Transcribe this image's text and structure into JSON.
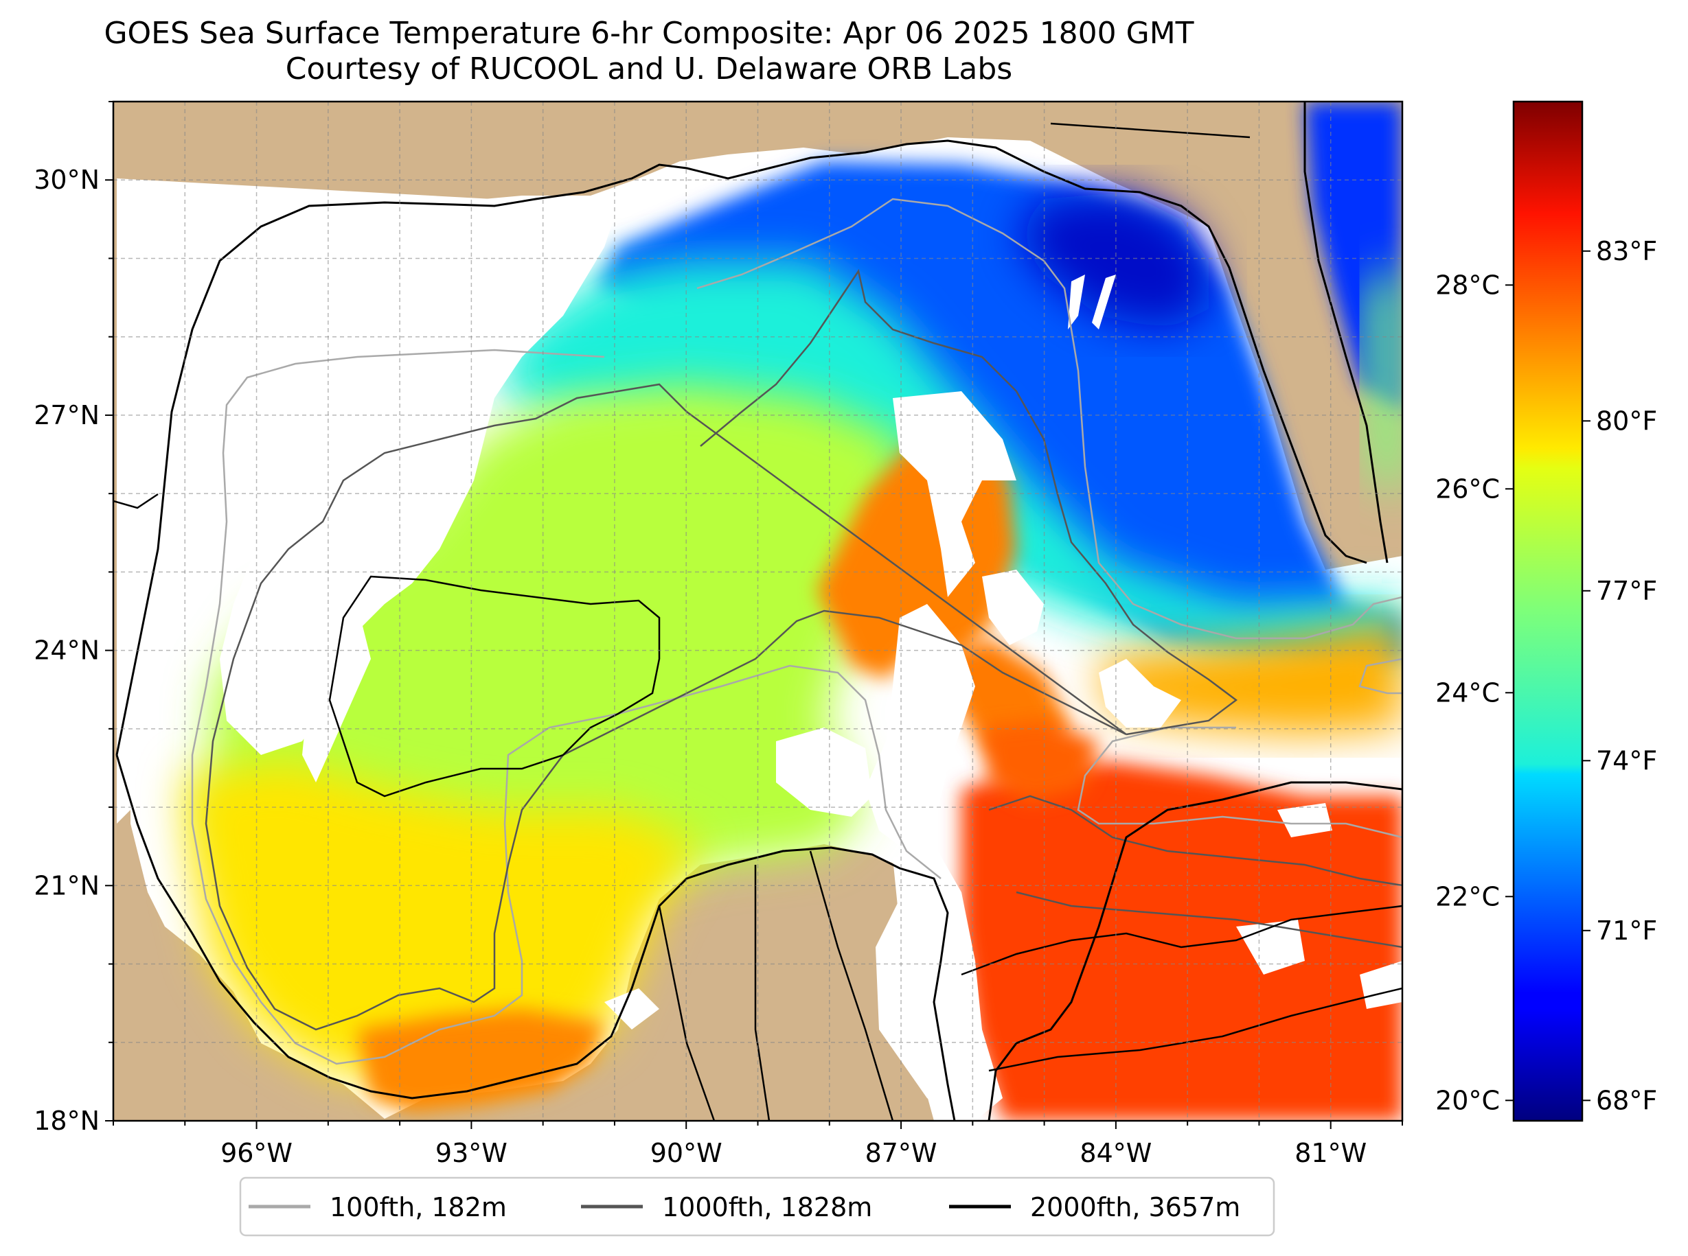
{
  "title": {
    "line1": "GOES Sea Surface Temperature 6-hr Composite: Apr 06 2025 1800 GMT",
    "line2": "Courtesy of RUCOOL and U. Delaware ORB Labs"
  },
  "map": {
    "lon_range": [
      -98,
      -80
    ],
    "lat_range": [
      18,
      31
    ],
    "lon_ticks": [
      {
        "value": -96,
        "label": "96°W"
      },
      {
        "value": -93,
        "label": "93°W"
      },
      {
        "value": -90,
        "label": "90°W"
      },
      {
        "value": -87,
        "label": "87°W"
      },
      {
        "value": -84,
        "label": "84°W"
      },
      {
        "value": -81,
        "label": "81°W"
      }
    ],
    "lat_ticks": [
      {
        "value": 18,
        "label": "18°N"
      },
      {
        "value": 21,
        "label": "21°N"
      },
      {
        "value": 24,
        "label": "24°N"
      },
      {
        "value": 27,
        "label": "27°N"
      },
      {
        "value": 30,
        "label": "30°N"
      }
    ],
    "gridlines": true,
    "land_color": "#d2b48c",
    "no_data_color": "#ffffff",
    "water_body_color": "#99b3e6"
  },
  "colorbar": {
    "colormap": "jet",
    "range_c": [
      19.8,
      29.8
    ],
    "celsius_ticks": [
      {
        "value": 20,
        "label": "20°C"
      },
      {
        "value": 22,
        "label": "22°C"
      },
      {
        "value": 24,
        "label": "24°C"
      },
      {
        "value": 26,
        "label": "26°C"
      },
      {
        "value": 28,
        "label": "28°C"
      }
    ],
    "fahrenheit_ticks": [
      {
        "value": 68,
        "label": "68°F"
      },
      {
        "value": 71,
        "label": "71°F"
      },
      {
        "value": 74,
        "label": "74°F"
      },
      {
        "value": 77,
        "label": "77°F"
      },
      {
        "value": 80,
        "label": "80°F"
      },
      {
        "value": 83,
        "label": "83°F"
      }
    ]
  },
  "legend": {
    "placement": "bottom-center",
    "items": [
      {
        "label": "100fth, 182m",
        "color": "#a9a9a9"
      },
      {
        "label": "1000fth, 1828m",
        "color": "#555555"
      },
      {
        "label": "2000fth, 3657m",
        "color": "#000000"
      }
    ]
  }
}
